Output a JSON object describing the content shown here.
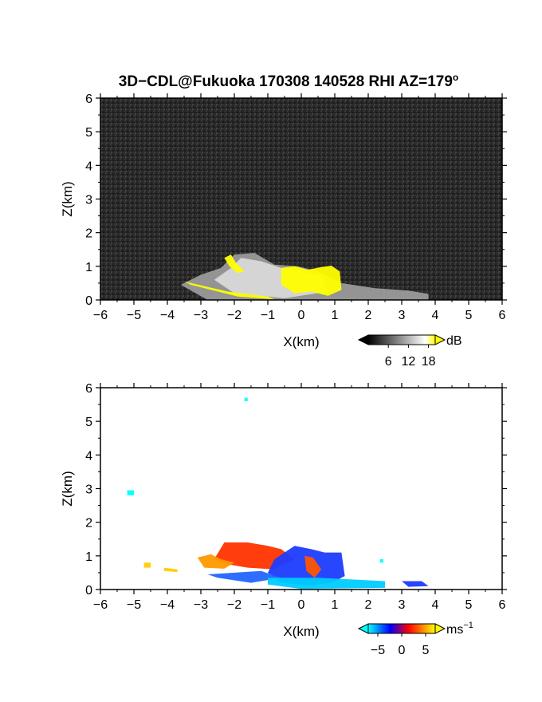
{
  "figure": {
    "title": "3D−CDL@Fukuoka 170308 140528 RHI AZ=179",
    "title_superscript": "o"
  },
  "chart_data": [
    {
      "type": "heatmap",
      "name": "snr",
      "xlabel": "X(km)",
      "ylabel": "Z(km)",
      "xlim": [
        -6,
        6
      ],
      "ylim": [
        0,
        6
      ],
      "x_ticks": [
        -6,
        -5,
        -4,
        -3,
        -2,
        -1,
        0,
        1,
        2,
        3,
        4,
        5,
        6
      ],
      "y_ticks": [
        0,
        1,
        2,
        3,
        4,
        5,
        6
      ],
      "x_tick_labels": [
        "−6",
        "−5",
        "−4",
        "−3",
        "−2",
        "−1",
        "0",
        "1",
        "2",
        "3",
        "4",
        "5",
        "6"
      ],
      "y_tick_labels": [
        "0",
        "1",
        "2",
        "3",
        "4",
        "5",
        "6"
      ],
      "background": "#2a2a2a",
      "colorbar": {
        "unit": "dB",
        "unit_superscript": "",
        "ticks": [
          6,
          12,
          18
        ],
        "tick_labels": [
          "6",
          "12",
          "18"
        ],
        "range": [
          0,
          20
        ],
        "colors": [
          "#000000",
          "#ffffff",
          "#ffff00"
        ]
      },
      "regions": [
        {
          "color": "#9a9a9a",
          "points": [
            [
              -3.6,
              0.45
            ],
            [
              -3.0,
              0.75
            ],
            [
              -2.4,
              0.95
            ],
            [
              -2.0,
              1.35
            ],
            [
              -1.4,
              1.4
            ],
            [
              -0.8,
              1.05
            ],
            [
              -0.1,
              1.0
            ],
            [
              0.5,
              0.85
            ],
            [
              1.2,
              0.5
            ],
            [
              2.2,
              0.35
            ],
            [
              3.2,
              0.28
            ],
            [
              3.8,
              0.18
            ],
            [
              3.8,
              0.0
            ],
            [
              -2.8,
              0.0
            ]
          ]
        },
        {
          "color": "#d8d8d8",
          "points": [
            [
              -2.6,
              0.6
            ],
            [
              -2.1,
              0.95
            ],
            [
              -1.8,
              1.25
            ],
            [
              -1.2,
              1.15
            ],
            [
              -0.6,
              0.95
            ],
            [
              0.0,
              0.85
            ],
            [
              0.6,
              0.7
            ],
            [
              0.8,
              0.25
            ],
            [
              -0.5,
              0.05
            ],
            [
              -2.0,
              0.2
            ]
          ]
        },
        {
          "color": "#ffff00",
          "points": [
            [
              -0.6,
              0.95
            ],
            [
              -0.2,
              1.0
            ],
            [
              0.2,
              0.9
            ],
            [
              0.6,
              0.98
            ],
            [
              0.9,
              1.02
            ],
            [
              1.15,
              0.85
            ],
            [
              1.2,
              0.3
            ],
            [
              0.8,
              0.12
            ],
            [
              0.3,
              0.25
            ],
            [
              -0.2,
              0.2
            ],
            [
              -0.6,
              0.45
            ]
          ]
        },
        {
          "color": "#ffff00",
          "points": [
            [
              -2.3,
              1.25
            ],
            [
              -2.1,
              1.35
            ],
            [
              -1.95,
              1.1
            ],
            [
              -1.7,
              0.85
            ],
            [
              -1.9,
              0.8
            ],
            [
              -2.15,
              1.0
            ]
          ]
        },
        {
          "color": "#ffff00",
          "points": [
            [
              -3.5,
              0.55
            ],
            [
              -2.2,
              0.25
            ],
            [
              -1.0,
              0.1
            ],
            [
              -0.8,
              0.02
            ],
            [
              -1.9,
              0.1
            ],
            [
              -3.3,
              0.45
            ]
          ]
        }
      ]
    },
    {
      "type": "heatmap",
      "name": "velocity",
      "xlabel": "X(km)",
      "ylabel": "Z(km)",
      "xlim": [
        -6,
        6
      ],
      "ylim": [
        0,
        6
      ],
      "x_ticks": [
        -6,
        -5,
        -4,
        -3,
        -2,
        -1,
        0,
        1,
        2,
        3,
        4,
        5,
        6
      ],
      "y_ticks": [
        0,
        1,
        2,
        3,
        4,
        5,
        6
      ],
      "x_tick_labels": [
        "−6",
        "−5",
        "−4",
        "−3",
        "−2",
        "−1",
        "0",
        "1",
        "2",
        "3",
        "4",
        "5",
        "6"
      ],
      "y_tick_labels": [
        "0",
        "1",
        "2",
        "3",
        "4",
        "5",
        "6"
      ],
      "background": "#ffffff",
      "colorbar": {
        "unit": "ms",
        "unit_superscript": "−1",
        "ticks": [
          -5,
          0,
          5
        ],
        "tick_labels": [
          "−5",
          "0",
          "5"
        ],
        "range": [
          -7,
          7
        ],
        "colors": [
          "#00ffff",
          "#0000ff",
          "#ff0000",
          "#ffff00"
        ]
      },
      "regions": [
        {
          "color": "#ff3300",
          "points": [
            [
              -2.3,
              1.4
            ],
            [
              -1.6,
              1.4
            ],
            [
              -1.0,
              1.3
            ],
            [
              -0.6,
              1.2
            ],
            [
              -0.2,
              0.9
            ],
            [
              -0.8,
              0.6
            ],
            [
              -1.6,
              0.65
            ],
            [
              -2.2,
              0.75
            ],
            [
              -2.6,
              0.9
            ]
          ]
        },
        {
          "color": "#ff9900",
          "points": [
            [
              -3.1,
              0.95
            ],
            [
              -2.7,
              1.05
            ],
            [
              -2.4,
              0.9
            ],
            [
              -2.0,
              0.8
            ],
            [
              -2.3,
              0.62
            ],
            [
              -2.9,
              0.65
            ]
          ]
        },
        {
          "color": "#1e3cff",
          "points": [
            [
              -0.2,
              1.3
            ],
            [
              0.3,
              1.2
            ],
            [
              0.7,
              1.1
            ],
            [
              1.2,
              1.1
            ],
            [
              1.3,
              0.4
            ],
            [
              0.9,
              0.2
            ],
            [
              0.2,
              0.12
            ],
            [
              -0.6,
              0.2
            ],
            [
              -1.0,
              0.5
            ],
            [
              -0.8,
              0.9
            ]
          ]
        },
        {
          "color": "#ff5500",
          "points": [
            [
              0.1,
              1.0
            ],
            [
              0.35,
              0.95
            ],
            [
              0.6,
              0.6
            ],
            [
              0.4,
              0.35
            ],
            [
              0.15,
              0.55
            ]
          ]
        },
        {
          "color": "#2266ff",
          "points": [
            [
              -2.8,
              0.45
            ],
            [
              -2.0,
              0.5
            ],
            [
              -1.2,
              0.55
            ],
            [
              -0.6,
              0.35
            ],
            [
              -1.5,
              0.2
            ],
            [
              -2.5,
              0.35
            ]
          ]
        },
        {
          "color": "#00ccff",
          "points": [
            [
              -1.0,
              0.35
            ],
            [
              0.5,
              0.35
            ],
            [
              1.5,
              0.3
            ],
            [
              2.5,
              0.25
            ],
            [
              2.5,
              0.05
            ],
            [
              0.0,
              0.02
            ],
            [
              -1.0,
              0.15
            ]
          ]
        },
        {
          "color": "#1e3cff",
          "points": [
            [
              3.0,
              0.25
            ],
            [
              3.6,
              0.25
            ],
            [
              3.8,
              0.1
            ],
            [
              3.2,
              0.08
            ]
          ]
        },
        {
          "color": "#ffcc00",
          "points": [
            [
              -4.7,
              0.8
            ],
            [
              -4.5,
              0.8
            ],
            [
              -4.5,
              0.65
            ],
            [
              -4.7,
              0.65
            ]
          ]
        },
        {
          "color": "#ffcc00",
          "points": [
            [
              -4.1,
              0.65
            ],
            [
              -3.7,
              0.6
            ],
            [
              -3.7,
              0.52
            ],
            [
              -4.1,
              0.55
            ]
          ]
        },
        {
          "color": "#00ffff",
          "points": [
            [
              -5.2,
              2.95
            ],
            [
              -5.0,
              2.95
            ],
            [
              -5.0,
              2.8
            ],
            [
              -5.2,
              2.8
            ]
          ]
        },
        {
          "color": "#00ffff",
          "points": [
            [
              -1.7,
              5.7
            ],
            [
              -1.6,
              5.7
            ],
            [
              -1.6,
              5.6
            ],
            [
              -1.7,
              5.6
            ]
          ]
        },
        {
          "color": "#00ffff",
          "points": [
            [
              2.35,
              0.9
            ],
            [
              2.45,
              0.9
            ],
            [
              2.45,
              0.8
            ],
            [
              2.35,
              0.8
            ]
          ]
        }
      ]
    }
  ]
}
